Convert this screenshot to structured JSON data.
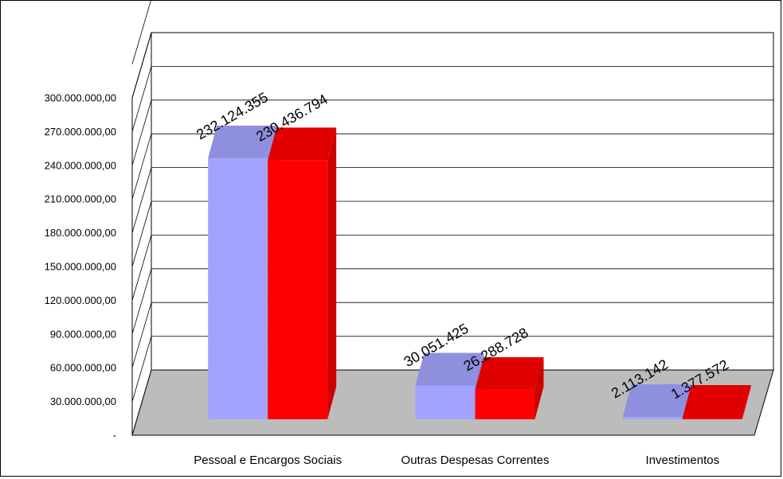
{
  "chart_data": {
    "type": "bar",
    "categories": [
      "Pessoal e Encargos Sociais",
      "Outras Despesas Correntes",
      "Investimentos"
    ],
    "series": [
      {
        "values": [
          232124355,
          30051425,
          2113142
        ],
        "color": "#a3a3ff"
      },
      {
        "values": [
          230436794,
          26288728,
          1377572
        ],
        "color": "#ff0000"
      }
    ],
    "data_labels": [
      [
        "232.124.355",
        "30.051.425",
        "2.113.142"
      ],
      [
        "230.436.794",
        "26.288.728",
        "1.377.572"
      ]
    ],
    "y_ticks": [
      {
        "value": 0,
        "label": "-"
      },
      {
        "value": 30000000,
        "label": "30.000.000,00"
      },
      {
        "value": 60000000,
        "label": "60.000.000,00"
      },
      {
        "value": 90000000,
        "label": "90.000.000,00"
      },
      {
        "value": 120000000,
        "label": "120.000.000,00"
      },
      {
        "value": 150000000,
        "label": "150.000.000,00"
      },
      {
        "value": 180000000,
        "label": "180.000.000,00"
      },
      {
        "value": 210000000,
        "label": "210.000.000,00"
      },
      {
        "value": 240000000,
        "label": "240.000.000,00"
      },
      {
        "value": 270000000,
        "label": "270.000.000,00"
      },
      {
        "value": 300000000,
        "label": "300.000.000,00"
      }
    ],
    "ylim": [
      0,
      330000000
    ],
    "grid": true,
    "three_d": true,
    "floor_color": "#bcbcbc",
    "title": "",
    "xlabel": "",
    "ylabel": ""
  }
}
